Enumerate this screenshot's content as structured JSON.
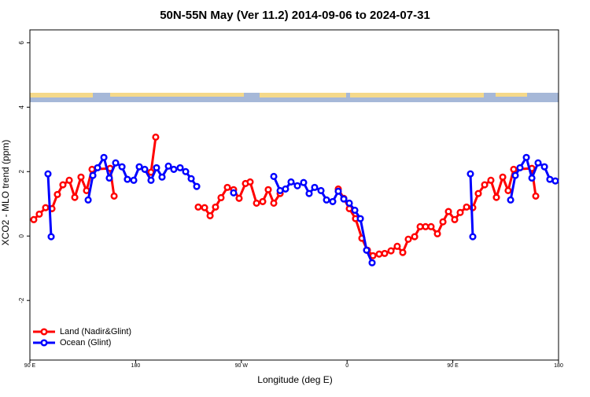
{
  "chart_data": {
    "type": "line",
    "title": "50N-55N May (Ver 11.2)   2014-09-06 to 2024-07-31",
    "x_label": "Longitude (deg E)",
    "y_label": "XCO2 - MLO trend (ppm)",
    "xlim": [
      90,
      540
    ],
    "ylim": [
      -3.85,
      6.4
    ],
    "xticks": [
      {
        "value": 90,
        "label": "90 E"
      },
      {
        "value": 180,
        "label": "180"
      },
      {
        "value": 270,
        "label": "90 W"
      },
      {
        "value": 360,
        "label": "0"
      },
      {
        "value": 450,
        "label": "90 E"
      },
      {
        "value": 540,
        "label": "180"
      }
    ],
    "yticks": [
      -2,
      0,
      2,
      4,
      6
    ],
    "legend": "bottom-left",
    "series": [
      {
        "name": "Land (Nadir&Glint)",
        "color": "#ff0000",
        "x": [
          93.3,
          98.0,
          103.4,
          108.8,
          113.4,
          118.1,
          123.5,
          128.2,
          133.5,
          138.2,
          142.9,
          158.3,
          161.7,
          null,
          193.1,
          197.1,
          null,
          233.3,
          238.7,
          243.4,
          248.0,
          252.7,
          258.1,
          263.4,
          268.1,
          273.5,
          277.5,
          282.9,
          288.2,
          292.9,
          297.6,
          303.0,
          null,
          352.5,
          357.2,
          361.9,
          367.2,
          372.6,
          377.3,
          382.0,
          387.3,
          392.0,
          397.4,
          402.7,
          407.4,
          412.1,
          417.5,
          422.2,
          426.8,
          431.5,
          436.9,
          441.6,
          446.3,
          451.6,
          456.3,
          461.7,
          467.0,
          471.7,
          477.1,
          482.4,
          487.1,
          492.5,
          497.1,
          501.8,
          517.3,
          520.6
        ],
        "values": [
          0.51,
          0.68,
          0.88,
          0.85,
          1.29,
          1.59,
          1.73,
          1.2,
          1.83,
          1.41,
          2.07,
          2.1,
          1.24,
          null,
          1.98,
          3.07,
          null,
          0.9,
          0.88,
          0.63,
          0.9,
          1.19,
          1.51,
          1.44,
          1.17,
          1.63,
          1.68,
          1.02,
          1.07,
          1.44,
          1.02,
          1.32,
          null,
          1.46,
          1.17,
          0.85,
          0.54,
          -0.07,
          -0.44,
          -0.61,
          -0.56,
          -0.54,
          -0.46,
          -0.32,
          -0.51,
          -0.1,
          -0.02,
          0.29,
          0.29,
          0.29,
          0.07,
          0.44,
          0.76,
          0.51,
          0.73,
          0.9,
          0.88,
          1.32,
          1.59,
          1.73,
          1.2,
          1.83,
          1.41,
          2.07,
          2.1,
          1.24
        ]
      },
      {
        "name": "Ocean (Glint)",
        "color": "#0000ff",
        "x": [
          105.4,
          108.1,
          null,
          139.6,
          143.6,
          147.6,
          153.0,
          157.6,
          163.0,
          168.4,
          173.0,
          178.4,
          183.1,
          187.8,
          193.1,
          197.8,
          202.5,
          207.9,
          212.5,
          217.9,
          222.6,
          227.3,
          232.0,
          null,
          263.4,
          null,
          297.6,
          303.0,
          307.6,
          312.3,
          317.7,
          323.0,
          327.7,
          332.4,
          337.8,
          342.5,
          347.8,
          352.5,
          357.2,
          361.9,
          366.6,
          371.3,
          376.6,
          381.3,
          null,
          465.0,
          467.0,
          null,
          499.2,
          503.2,
          507.2,
          512.6,
          517.3,
          522.6,
          528.0,
          532.6,
          537.3
        ],
        "values": [
          1.93,
          -0.02,
          null,
          1.12,
          1.88,
          2.12,
          2.44,
          1.8,
          2.27,
          2.15,
          1.76,
          1.73,
          2.15,
          2.07,
          1.73,
          2.12,
          1.83,
          2.17,
          2.07,
          2.12,
          2.0,
          1.78,
          1.54,
          null,
          1.34,
          null,
          1.85,
          1.41,
          1.46,
          1.68,
          1.56,
          1.66,
          1.32,
          1.51,
          1.41,
          1.12,
          1.07,
          1.39,
          1.15,
          1.02,
          0.8,
          0.54,
          -0.44,
          -0.83,
          null,
          1.93,
          -0.02,
          null,
          1.12,
          1.88,
          2.12,
          2.44,
          1.8,
          2.27,
          2.15,
          1.76,
          1.71
        ]
      }
    ]
  }
}
